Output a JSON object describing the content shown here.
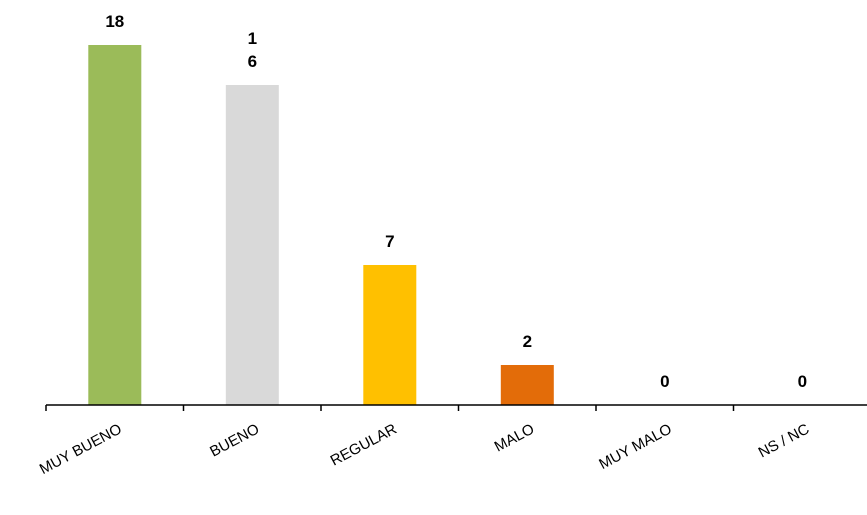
{
  "chart_data": {
    "type": "bar",
    "categories": [
      "MUY BUENO",
      "BUENO",
      "REGULAR",
      "MALO",
      "MUY MALO",
      "NS / NC"
    ],
    "values": [
      18,
      16,
      7,
      2,
      0,
      0
    ],
    "data_labels": [
      "18",
      "1\n6",
      "7",
      "2",
      "0",
      "0"
    ],
    "colors": [
      "#9BBB59",
      "#D9D9D9",
      "#FFC000",
      "#E36C09",
      "#A6A6A6",
      "#A6A6A6"
    ],
    "ylim": [
      0,
      18
    ],
    "grid": false,
    "legend": "none",
    "xlabel": "",
    "ylabel": "",
    "title": ""
  }
}
